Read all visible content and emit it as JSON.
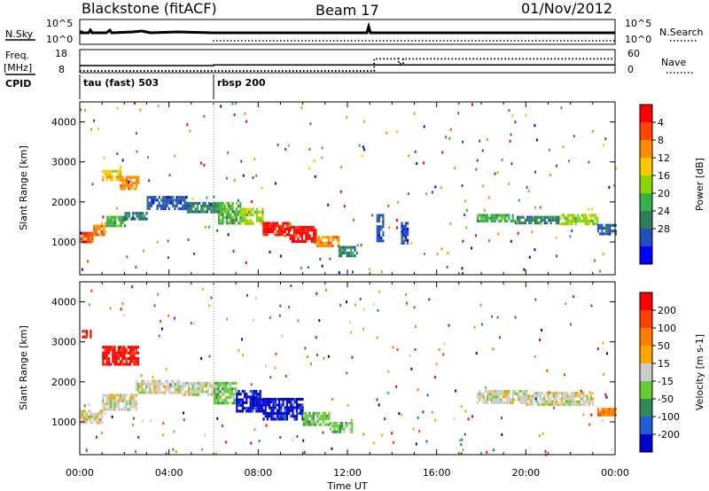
{
  "header": {
    "station": "Blackstone (fitACF)",
    "beam": "Beam 17",
    "date": "01/Nov/2012"
  },
  "strips": {
    "nsky_label": "N.Sky",
    "nsearch_label": "N.Search",
    "nsky_scale_top": "10^5",
    "nsky_scale_bottom": "10^0",
    "nsearch_scale_top": "10^5",
    "nsearch_scale_bottom": "10^0",
    "freq_label": "Freq.",
    "freq_unit": "[MHz]",
    "freq_ticks": [
      "18",
      "8"
    ],
    "nave_label": "Nave",
    "nave_ticks": [
      "60",
      "0"
    ],
    "cpid_label": "CPID",
    "cpid_segments": [
      {
        "label": "tau (fast) 503",
        "start_hour": 0,
        "end_hour": 6
      },
      {
        "label": "rbsp 200",
        "start_hour": 6,
        "end_hour": 24
      }
    ]
  },
  "chart_data": [
    {
      "type": "line",
      "panel": "frequency",
      "ylabel": "Freq. [MHz]",
      "y_ticks": [
        8,
        18
      ],
      "series": [
        {
          "name": "Freq.",
          "style": "solid",
          "x": [
            0,
            6,
            6,
            24
          ],
          "y": [
            10.5,
            10.5,
            11,
            11
          ]
        },
        {
          "name": "Nave",
          "style": "dotted",
          "x": [
            0,
            13.2,
            13.2,
            14.3,
            14.3,
            14.5,
            14.5,
            24
          ],
          "y": [
            0,
            0,
            37,
            37,
            22,
            22,
            37,
            37
          ]
        }
      ]
    },
    {
      "type": "heatmap",
      "panel": "power",
      "xlabel": "",
      "ylabel": "Slant Range [km]",
      "x_ticks": [
        "00:00",
        "04:00",
        "08:00",
        "12:00",
        "16:00",
        "20:00",
        "00:00"
      ],
      "y_ticks": [
        1000,
        2000,
        3000,
        4000
      ],
      "xlim_hours": [
        0,
        24
      ],
      "ylim_km": [
        180,
        4500
      ],
      "colorbar": {
        "label": "Power [dB]",
        "ticks": [
          "4",
          "8",
          "12",
          "16",
          "20",
          "24",
          "28"
        ],
        "colors": [
          "#0000ff",
          "#1f4fbf",
          "#2e7d5b",
          "#35b04a",
          "#8cd600",
          "#ffc800",
          "#ff8c00",
          "#ff4500",
          "#ff0000"
        ]
      },
      "regions": [
        {
          "t0": 0.0,
          "t1": 0.6,
          "r0": 1000,
          "r1": 1250,
          "level": 7
        },
        {
          "t0": 0.6,
          "t1": 1.2,
          "r0": 1200,
          "r1": 1500,
          "level": 6
        },
        {
          "t0": 1.2,
          "t1": 2.0,
          "r0": 1400,
          "r1": 1650,
          "level": 3
        },
        {
          "t0": 2.0,
          "t1": 3.0,
          "r0": 1550,
          "r1": 1750,
          "level": 2
        },
        {
          "t0": 1.0,
          "t1": 1.8,
          "r0": 2550,
          "r1": 2800,
          "level": 5
        },
        {
          "t0": 1.8,
          "t1": 2.6,
          "r0": 2350,
          "r1": 2650,
          "level": 6
        },
        {
          "t0": 3.0,
          "t1": 4.8,
          "r0": 1850,
          "r1": 2150,
          "level": 1
        },
        {
          "t0": 4.8,
          "t1": 6.2,
          "r0": 1750,
          "r1": 2000,
          "level": 2
        },
        {
          "t0": 6.2,
          "t1": 7.2,
          "r0": 1500,
          "r1": 2000,
          "level": 3
        },
        {
          "t0": 7.2,
          "t1": 8.2,
          "r0": 1450,
          "r1": 1850,
          "level": 4
        },
        {
          "t0": 8.2,
          "t1": 9.4,
          "r0": 1200,
          "r1": 1500,
          "level": 8
        },
        {
          "t0": 9.4,
          "t1": 10.6,
          "r0": 1000,
          "r1": 1400,
          "level": 8
        },
        {
          "t0": 10.6,
          "t1": 11.6,
          "r0": 900,
          "r1": 1150,
          "level": 6
        },
        {
          "t0": 11.6,
          "t1": 12.4,
          "r0": 650,
          "r1": 900,
          "level": 2
        },
        {
          "t0": 13.3,
          "t1": 13.6,
          "r0": 1050,
          "r1": 1700,
          "level": 1
        },
        {
          "t0": 14.4,
          "t1": 14.7,
          "r0": 1000,
          "r1": 1500,
          "level": 1
        },
        {
          "t0": 17.8,
          "t1": 19.5,
          "r0": 1500,
          "r1": 1700,
          "level": 3
        },
        {
          "t0": 19.5,
          "t1": 21.5,
          "r0": 1450,
          "r1": 1650,
          "level": 2
        },
        {
          "t0": 21.5,
          "t1": 23.2,
          "r0": 1450,
          "r1": 1700,
          "level": 4
        },
        {
          "t0": 23.2,
          "t1": 24.0,
          "r0": 1200,
          "r1": 1450,
          "level": 1
        }
      ]
    },
    {
      "type": "heatmap",
      "panel": "velocity",
      "xlabel": "Time UT",
      "ylabel": "Slant Range [km]",
      "x_ticks": [
        "00:00",
        "04:00",
        "08:00",
        "12:00",
        "16:00",
        "20:00",
        "00:00"
      ],
      "y_ticks": [
        1000,
        2000,
        3000,
        4000
      ],
      "xlim_hours": [
        0,
        24
      ],
      "ylim_km": [
        180,
        4500
      ],
      "colorbar": {
        "label": "Velocity [m s-1]",
        "ticks": [
          "200",
          "100",
          "50",
          "15",
          "-15",
          "-50",
          "-100",
          "-200"
        ],
        "colors": [
          "#0000cc",
          "#1e5fd6",
          "#2e8b57",
          "#66cc33",
          "#cccccc",
          "#ffa500",
          "#ff7f00",
          "#ff4000",
          "#ff0000"
        ]
      },
      "regions": [
        {
          "t0": 0.0,
          "t1": 1.0,
          "r0": 1000,
          "r1": 1300,
          "level": 4
        },
        {
          "t0": 1.0,
          "t1": 2.5,
          "r0": 1300,
          "r1": 1700,
          "level": 4
        },
        {
          "t0": 1.0,
          "t1": 2.6,
          "r0": 2450,
          "r1": 2900,
          "level": 8
        },
        {
          "t0": 0.1,
          "t1": 0.5,
          "r0": 3150,
          "r1": 3300,
          "level": 8
        },
        {
          "t0": 2.5,
          "t1": 4.5,
          "r0": 1750,
          "r1": 2050,
          "level": 4
        },
        {
          "t0": 4.5,
          "t1": 6.0,
          "r0": 1700,
          "r1": 2000,
          "level": 4
        },
        {
          "t0": 6.0,
          "t1": 7.0,
          "r0": 1500,
          "r1": 2000,
          "level": 3
        },
        {
          "t0": 7.0,
          "t1": 8.2,
          "r0": 1300,
          "r1": 1800,
          "level": 0
        },
        {
          "t0": 8.2,
          "t1": 10.0,
          "r0": 1100,
          "r1": 1600,
          "level": 0
        },
        {
          "t0": 10.0,
          "t1": 11.2,
          "r0": 950,
          "r1": 1250,
          "level": 3
        },
        {
          "t0": 11.2,
          "t1": 12.2,
          "r0": 750,
          "r1": 1000,
          "level": 3
        },
        {
          "t0": 17.8,
          "t1": 20.0,
          "r0": 1450,
          "r1": 1800,
          "level": 4
        },
        {
          "t0": 20.0,
          "t1": 23.0,
          "r0": 1400,
          "r1": 1750,
          "level": 4
        },
        {
          "t0": 23.2,
          "t1": 24.0,
          "r0": 1150,
          "r1": 1350,
          "level": 6
        }
      ]
    }
  ]
}
